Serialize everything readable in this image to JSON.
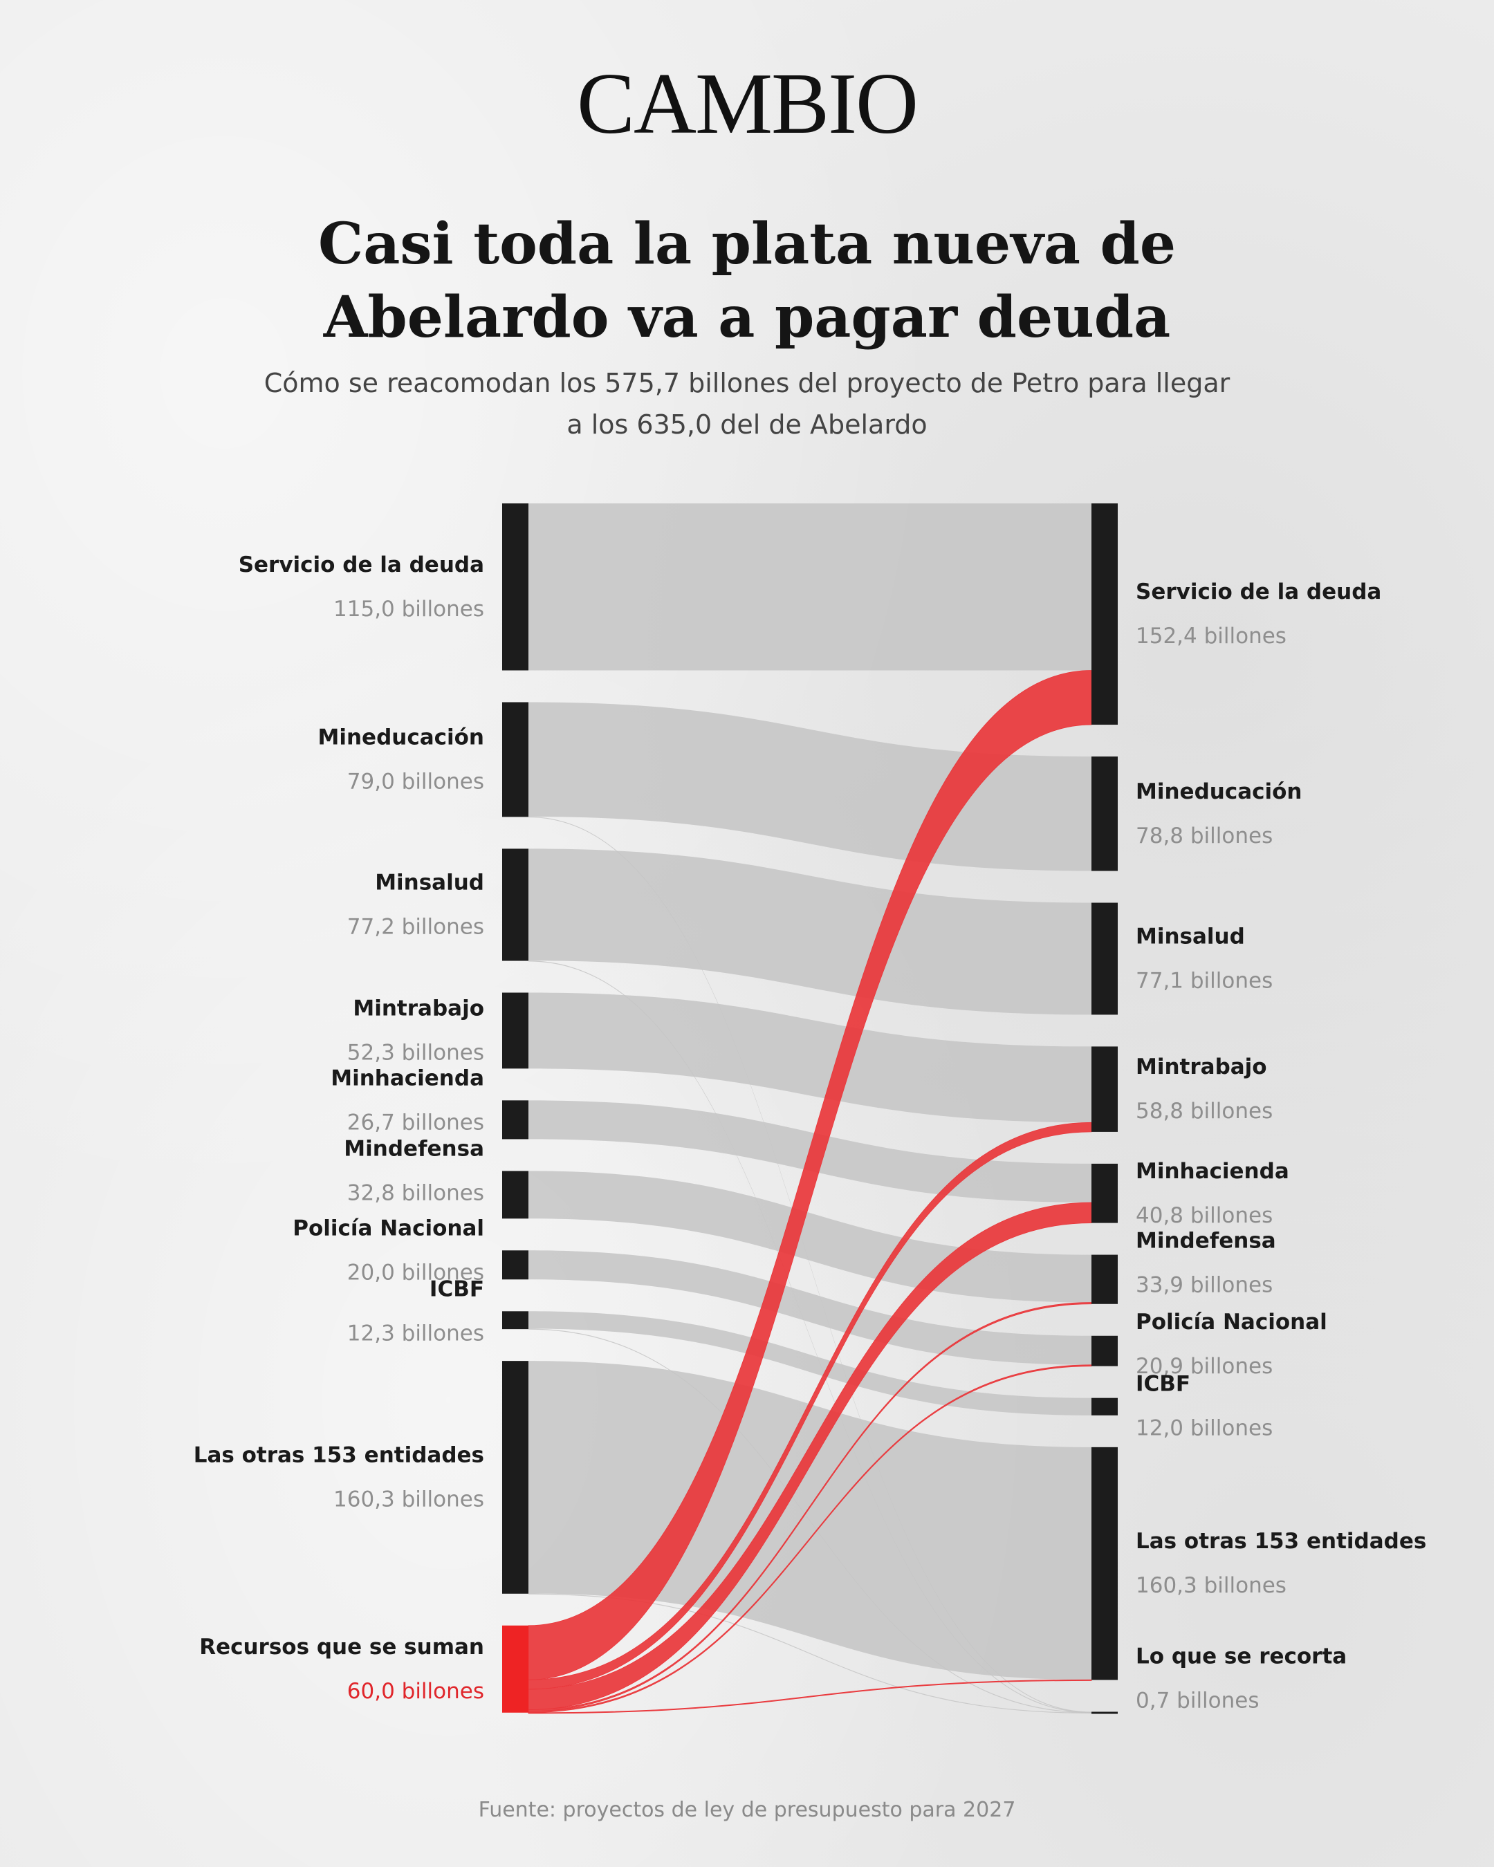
{
  "logo": "CAMBIO",
  "title": "Casi toda la plata nueva de Abelardo va a pagar deuda",
  "subtitle": "Cómo se reacomodan los 575,7 billones del proyecto de Petro para llegar a los 635,0 del de Abelardo",
  "source": "Fuente: proyectos de ley de presupuesto para 2027",
  "colors": {
    "node": "#1c1c1c",
    "node_added": "#ee2324",
    "flow_grey": "#c4c4c4",
    "flow_red": "#e9373b",
    "value_added": "#e0262b"
  },
  "chart_data": {
    "type": "sankey",
    "unit": "billones",
    "left_nodes": [
      {
        "id": "deuda",
        "name": "Servicio de la deuda",
        "value": 115.0,
        "value_label": "115,0 billones"
      },
      {
        "id": "educ",
        "name": "Mineducación",
        "value": 79.0,
        "value_label": "79,0 billones"
      },
      {
        "id": "salud",
        "name": "Minsalud",
        "value": 77.2,
        "value_label": "77,2 billones"
      },
      {
        "id": "trabajo",
        "name": "Mintrabajo",
        "value": 52.3,
        "value_label": "52,3 billones"
      },
      {
        "id": "hacienda",
        "name": "Minhacienda",
        "value": 26.7,
        "value_label": "26,7 billones"
      },
      {
        "id": "defensa",
        "name": "Mindefensa",
        "value": 32.8,
        "value_label": "32,8 billones"
      },
      {
        "id": "policia",
        "name": "Policía Nacional",
        "value": 20.0,
        "value_label": "20,0 billones"
      },
      {
        "id": "icbf",
        "name": "ICBF",
        "value": 12.3,
        "value_label": "12,3 billones"
      },
      {
        "id": "otras",
        "name": "Las otras 153 entidades",
        "value": 160.3,
        "value_label": "160,3 billones"
      },
      {
        "id": "suman",
        "name": "Recursos que se suman",
        "value": 60.0,
        "value_label": "60,0 billones",
        "highlight": true
      }
    ],
    "right_nodes": [
      {
        "id": "deuda",
        "name": "Servicio de la deuda",
        "value": 152.4,
        "value_label": "152,4 billones"
      },
      {
        "id": "educ",
        "name": "Mineducación",
        "value": 78.8,
        "value_label": "78,8 billones"
      },
      {
        "id": "salud",
        "name": "Minsalud",
        "value": 77.1,
        "value_label": "77,1 billones"
      },
      {
        "id": "trabajo",
        "name": "Mintrabajo",
        "value": 58.8,
        "value_label": "58,8 billones"
      },
      {
        "id": "hacienda",
        "name": "Minhacienda",
        "value": 40.8,
        "value_label": "40,8 billones"
      },
      {
        "id": "defensa",
        "name": "Mindefensa",
        "value": 33.9,
        "value_label": "33,9 billones"
      },
      {
        "id": "policia",
        "name": "Policía Nacional",
        "value": 20.9,
        "value_label": "20,9 billones"
      },
      {
        "id": "icbf",
        "name": "ICBF",
        "value": 12.0,
        "value_label": "12,0 billones"
      },
      {
        "id": "otras",
        "name": "Las otras 153 entidades",
        "value": 160.3,
        "value_label": "160,3 billones"
      },
      {
        "id": "recorta",
        "name": "Lo que se recorta",
        "value": 0.7,
        "value_label": "0,7 billones"
      }
    ],
    "flows": [
      {
        "from": "deuda",
        "to": "deuda",
        "value": 115.0
      },
      {
        "from": "educ",
        "to": "educ",
        "value": 78.8
      },
      {
        "from": "educ",
        "to": "recorta",
        "value": 0.2
      },
      {
        "from": "salud",
        "to": "salud",
        "value": 77.1
      },
      {
        "from": "salud",
        "to": "recorta",
        "value": 0.1
      },
      {
        "from": "trabajo",
        "to": "trabajo",
        "value": 52.3
      },
      {
        "from": "hacienda",
        "to": "hacienda",
        "value": 26.7
      },
      {
        "from": "defensa",
        "to": "defensa",
        "value": 32.8
      },
      {
        "from": "policia",
        "to": "policia",
        "value": 20.0
      },
      {
        "from": "icbf",
        "to": "icbf",
        "value": 12.0
      },
      {
        "from": "icbf",
        "to": "recorta",
        "value": 0.3
      },
      {
        "from": "otras",
        "to": "otras",
        "value": 160.2
      },
      {
        "from": "otras",
        "to": "recorta",
        "value": 0.1
      },
      {
        "from": "suman",
        "to": "deuda",
        "value": 37.4
      },
      {
        "from": "suman",
        "to": "trabajo",
        "value": 6.5
      },
      {
        "from": "suman",
        "to": "hacienda",
        "value": 14.1
      },
      {
        "from": "suman",
        "to": "defensa",
        "value": 1.1
      },
      {
        "from": "suman",
        "to": "policia",
        "value": 0.9
      },
      {
        "from": "suman",
        "to": "otras",
        "value": 0.1
      }
    ]
  }
}
